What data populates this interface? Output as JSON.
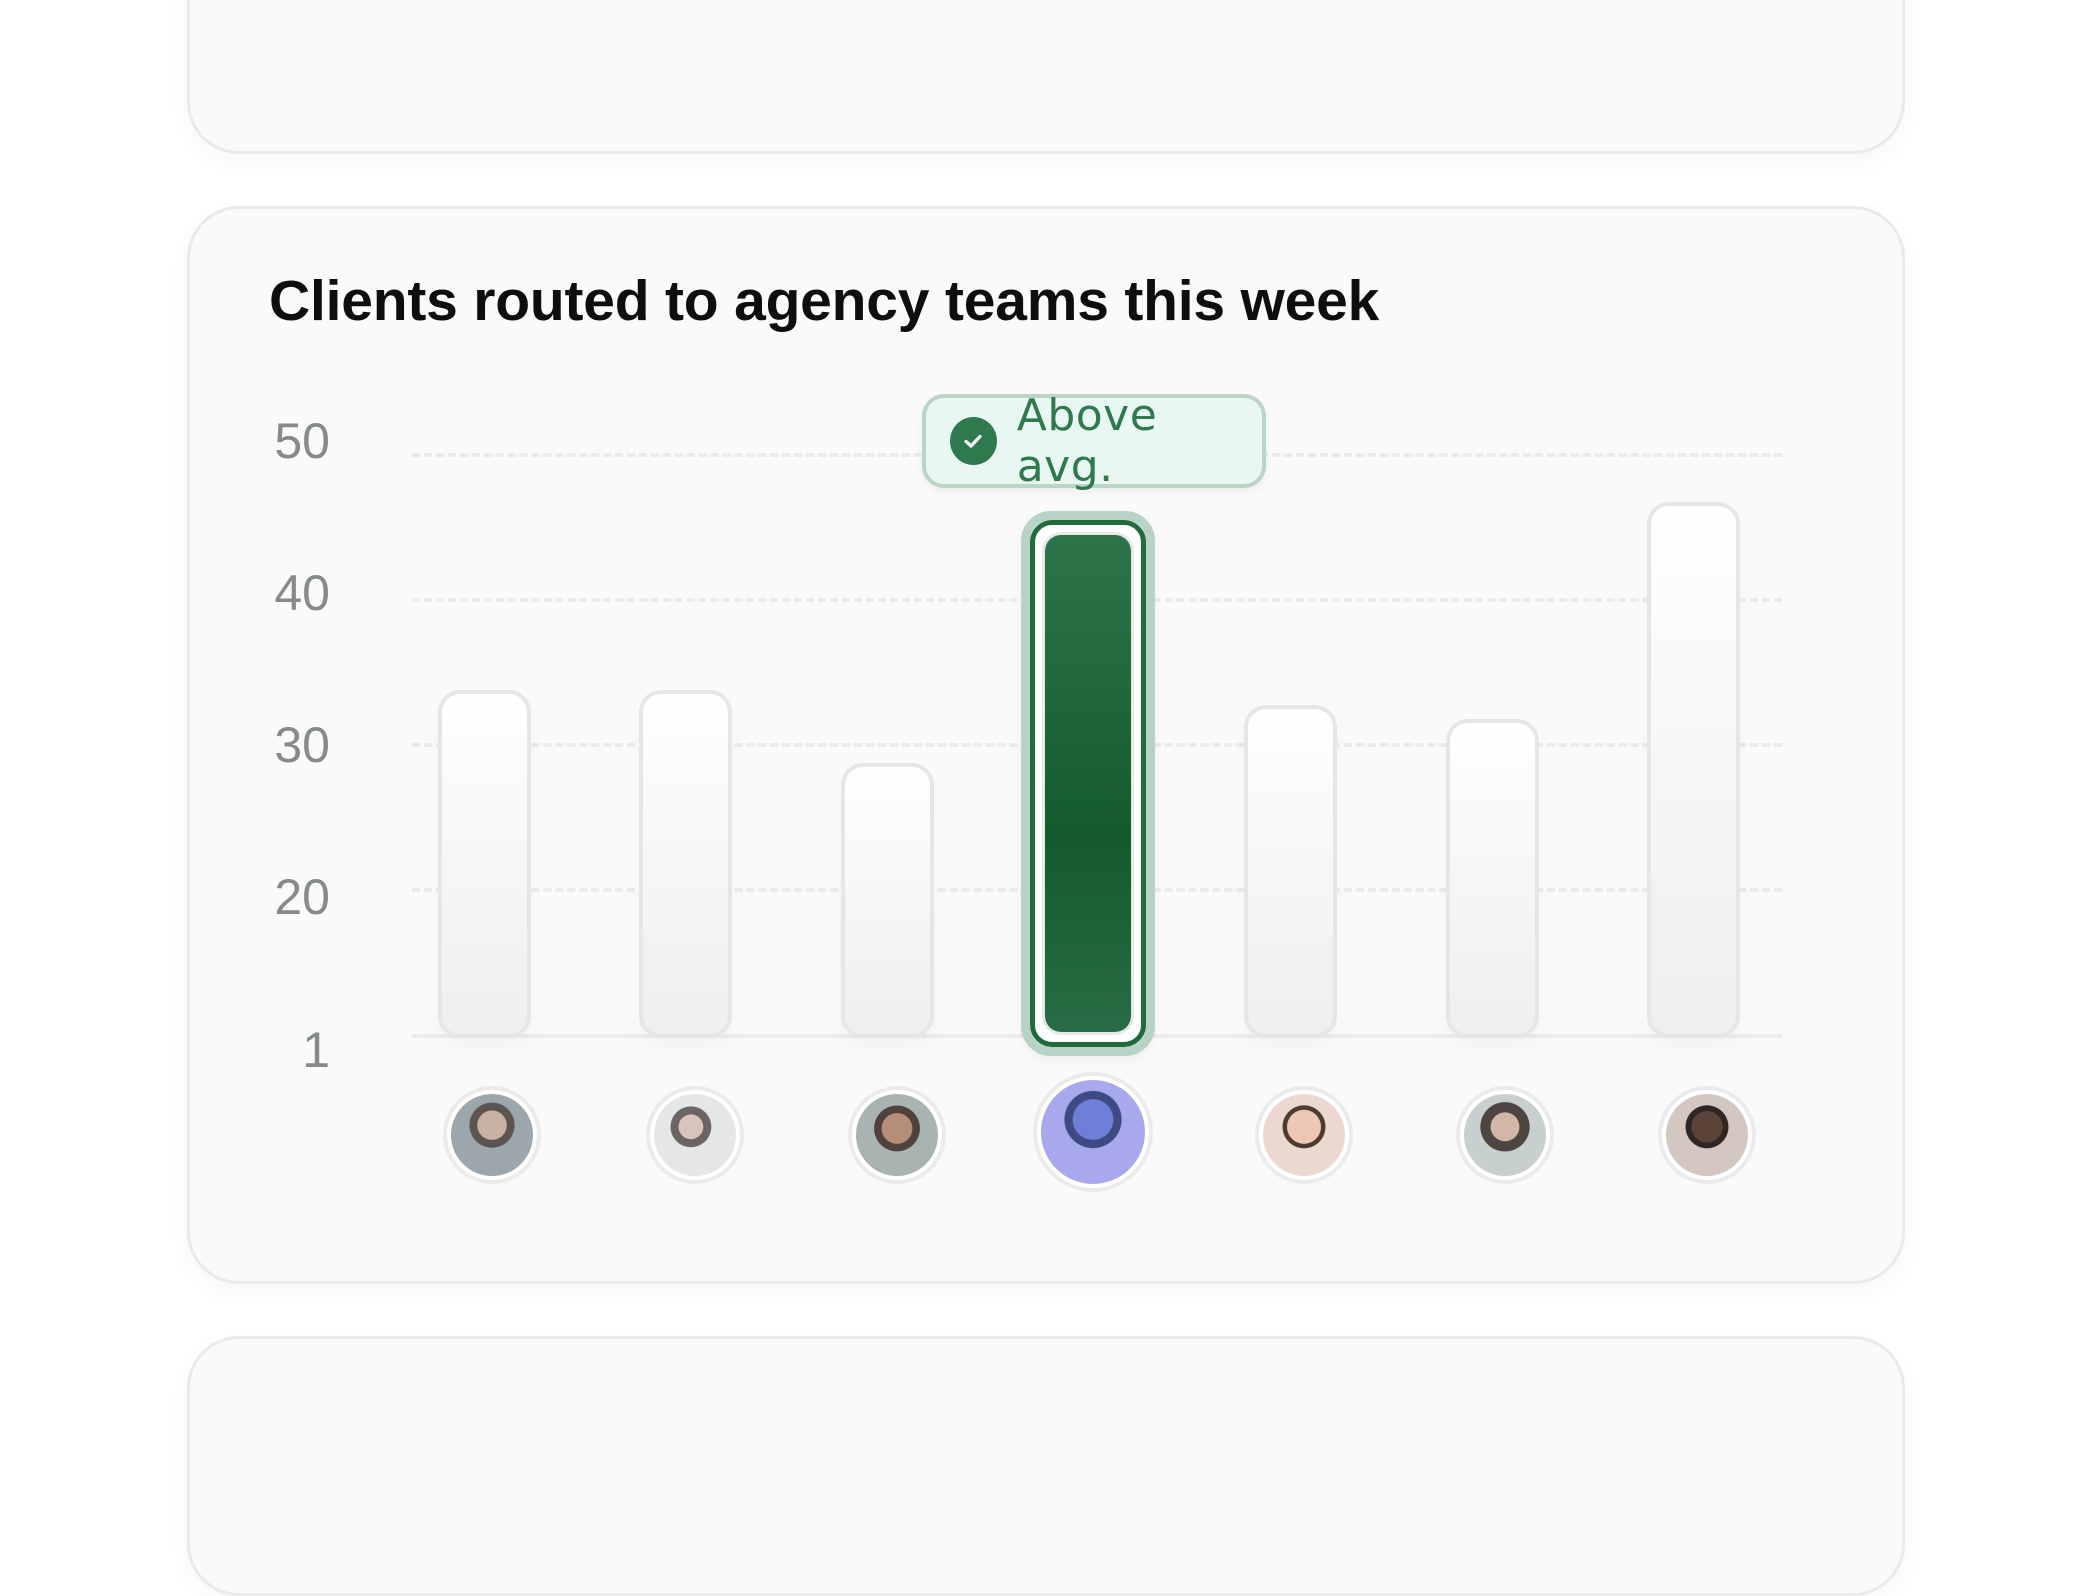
{
  "cards": {
    "top": {},
    "bottom": {}
  },
  "chart": {
    "title": "Clients routed to agency teams this week",
    "badge": {
      "label": "Above avg.",
      "icon": "check-circle-icon",
      "color": "#2e7a4e",
      "background": "#e9f7f3"
    },
    "y_ticks": [
      "50",
      "40",
      "30",
      "20",
      "1"
    ],
    "colors": {
      "highlight": "#1d6438",
      "bar": "#f2f2f2",
      "axis_text": "#858a8d"
    }
  },
  "chart_data": {
    "type": "bar",
    "title": "Clients routed to agency teams this week",
    "categories": [
      "Team member 1",
      "Team member 2",
      "Team member 3",
      "Team member 4",
      "Team member 5",
      "Team member 6",
      "Team member 7"
    ],
    "values": [
      34,
      34,
      29,
      45,
      33,
      32,
      47
    ],
    "highlighted_index": 3,
    "annotations": [
      {
        "index": 3,
        "text": "Above avg."
      }
    ],
    "xlabel": "",
    "ylabel": "",
    "y_tick_labels": [
      "1",
      "20",
      "30",
      "40",
      "50"
    ],
    "ylim": [
      10,
      50
    ],
    "grid": true,
    "x_axis_labels": "avatar images (one per bar)",
    "legend": null
  }
}
